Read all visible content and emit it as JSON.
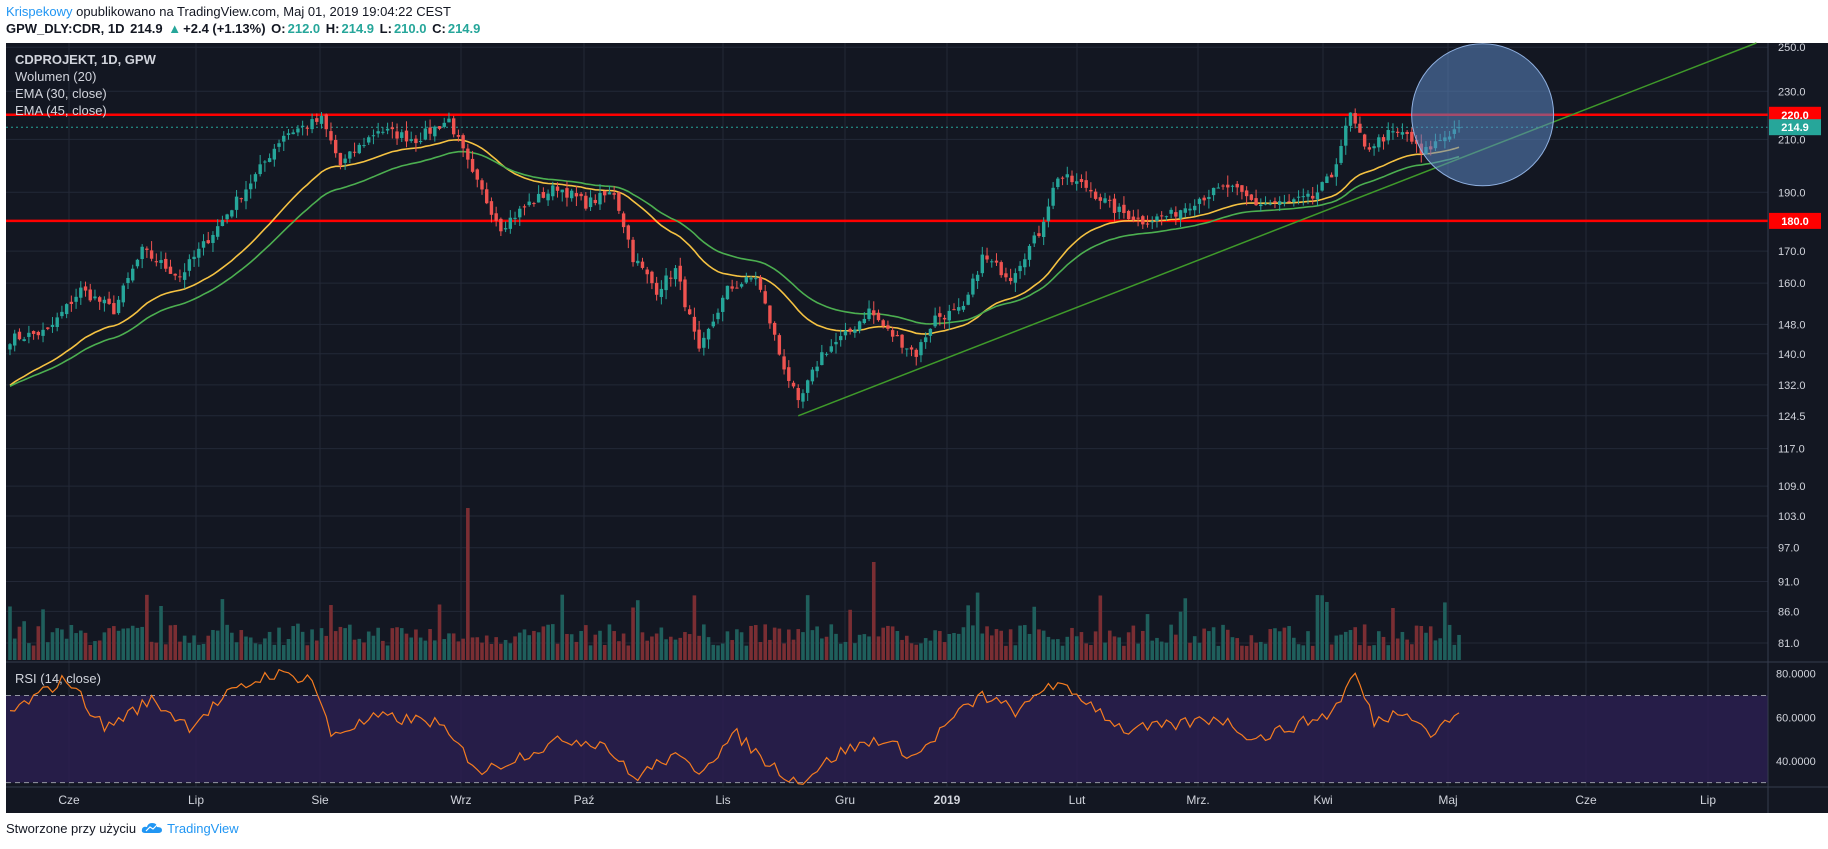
{
  "header": {
    "author": "Krispekowy",
    "published": "opublikowano na TradingView.com, Maj 01, 2019 19:04:22 CEST"
  },
  "quote": {
    "symbol": "GPW_DLY:CDR, 1D",
    "last": "214.9",
    "arrow": "▲",
    "change": "+2.4 (+1.13%)",
    "o_label": "O:",
    "o": "212.0",
    "h_label": "H:",
    "h": "214.9",
    "l_label": "L:",
    "l": "210.0",
    "c_label": "C:",
    "c": "214.9"
  },
  "legend": {
    "title": "CDPROJEKT, 1D, GPW",
    "volume": "Wolumen (20)",
    "ema30": "EMA (30, close)",
    "ema45": "EMA (45, close)",
    "rsi": "RSI (14, close)"
  },
  "footer": {
    "created": "Stworzone przy użyciu",
    "brand": "TradingView"
  },
  "colors": {
    "background": "#131722",
    "up": "#26a69a",
    "down": "#ef5350",
    "volume_up": "#1f5f5c",
    "volume_down": "#7a2e33",
    "ema30": "#f5c242",
    "ema45": "#4caf50",
    "hline": "#ff0000",
    "trend": "#3f9a2a",
    "rsi": "#f57c20",
    "rsi_band": "#2a1f4f",
    "circle_fill": "#5b86c2",
    "circle_stroke": "#8fb0e0"
  },
  "chart_data": {
    "type": "candlestick",
    "scale": "log",
    "ylim": [
      78,
      252
    ],
    "price_ticks": [
      "250.0",
      "230.0",
      "210.0",
      "190.0",
      "170.0",
      "160.0",
      "148.0",
      "140.0",
      "132.0",
      "124.5",
      "117.0",
      "109.0",
      "103.0",
      "97.0",
      "91.0",
      "86.0",
      "81.0"
    ],
    "price_tick_values": [
      250,
      230,
      210,
      190,
      170,
      160,
      148,
      140,
      132,
      124.5,
      117,
      109,
      103,
      97,
      91,
      86,
      81
    ],
    "x_ticks": [
      "Cze",
      "Lip",
      "Sie",
      "Wrz",
      "Paź",
      "Lis",
      "Gru",
      "2019",
      "Lut",
      "Mrz.",
      "Kwi",
      "Maj",
      "Cze",
      "Lip"
    ],
    "horizontal_levels": [
      {
        "label": "220.0",
        "value": 220
      },
      {
        "label": "180.0",
        "value": 180
      }
    ],
    "last_price": {
      "label": "214.9",
      "value": 214.9
    },
    "trendline": [
      {
        "bar": 167,
        "price": 124.5
      },
      {
        "bar": 370,
        "price": 252
      }
    ],
    "circle": {
      "center_bar": 312,
      "center_price": 220,
      "note": "highlight near 220 resistance"
    },
    "key_prices": [
      {
        "bar": 0,
        "price": 144
      },
      {
        "bar": 8,
        "price": 146
      },
      {
        "bar": 15,
        "price": 158
      },
      {
        "bar": 22,
        "price": 152
      },
      {
        "bar": 28,
        "price": 170
      },
      {
        "bar": 36,
        "price": 162
      },
      {
        "bar": 44,
        "price": 178
      },
      {
        "bar": 52,
        "price": 196
      },
      {
        "bar": 58,
        "price": 212
      },
      {
        "bar": 66,
        "price": 218
      },
      {
        "bar": 70,
        "price": 200
      },
      {
        "bar": 78,
        "price": 214
      },
      {
        "bar": 86,
        "price": 210
      },
      {
        "bar": 93,
        "price": 218
      },
      {
        "bar": 98,
        "price": 196
      },
      {
        "bar": 104,
        "price": 178
      },
      {
        "bar": 110,
        "price": 186
      },
      {
        "bar": 116,
        "price": 192
      },
      {
        "bar": 122,
        "price": 186
      },
      {
        "bar": 128,
        "price": 190
      },
      {
        "bar": 132,
        "price": 168
      },
      {
        "bar": 137,
        "price": 158
      },
      {
        "bar": 141,
        "price": 164
      },
      {
        "bar": 146,
        "price": 140
      },
      {
        "bar": 152,
        "price": 158
      },
      {
        "bar": 158,
        "price": 162
      },
      {
        "bar": 163,
        "price": 140
      },
      {
        "bar": 167,
        "price": 127
      },
      {
        "bar": 172,
        "price": 140
      },
      {
        "bar": 178,
        "price": 146
      },
      {
        "bar": 182,
        "price": 152
      },
      {
        "bar": 186,
        "price": 146
      },
      {
        "bar": 192,
        "price": 140
      },
      {
        "bar": 196,
        "price": 150
      },
      {
        "bar": 202,
        "price": 152
      },
      {
        "bar": 206,
        "price": 168
      },
      {
        "bar": 212,
        "price": 162
      },
      {
        "bar": 218,
        "price": 176
      },
      {
        "bar": 222,
        "price": 196
      },
      {
        "bar": 228,
        "price": 192
      },
      {
        "bar": 234,
        "price": 184
      },
      {
        "bar": 240,
        "price": 180
      },
      {
        "bar": 246,
        "price": 182
      },
      {
        "bar": 252,
        "price": 188
      },
      {
        "bar": 258,
        "price": 192
      },
      {
        "bar": 264,
        "price": 186
      },
      {
        "bar": 270,
        "price": 186
      },
      {
        "bar": 276,
        "price": 188
      },
      {
        "bar": 280,
        "price": 196
      },
      {
        "bar": 284,
        "price": 220
      },
      {
        "bar": 287,
        "price": 206
      },
      {
        "bar": 292,
        "price": 212
      },
      {
        "bar": 296,
        "price": 212
      },
      {
        "bar": 299,
        "price": 204
      },
      {
        "bar": 303,
        "price": 210
      },
      {
        "bar": 307,
        "price": 214.9
      }
    ],
    "rsi": {
      "ticks": [
        "80.0000",
        "60.0000",
        "40.0000"
      ],
      "tick_values": [
        80,
        60,
        40
      ],
      "ylim": [
        28,
        84
      ],
      "overbought": 70,
      "oversold": 30,
      "key_points": [
        {
          "bar": 0,
          "value": 62
        },
        {
          "bar": 12,
          "value": 78
        },
        {
          "bar": 20,
          "value": 55
        },
        {
          "bar": 30,
          "value": 68
        },
        {
          "bar": 38,
          "value": 56
        },
        {
          "bar": 46,
          "value": 70
        },
        {
          "bar": 55,
          "value": 80
        },
        {
          "bar": 64,
          "value": 78
        },
        {
          "bar": 68,
          "value": 52
        },
        {
          "bar": 78,
          "value": 60
        },
        {
          "bar": 90,
          "value": 58
        },
        {
          "bar": 100,
          "value": 35
        },
        {
          "bar": 110,
          "value": 44
        },
        {
          "bar": 118,
          "value": 50
        },
        {
          "bar": 126,
          "value": 48
        },
        {
          "bar": 132,
          "value": 32
        },
        {
          "bar": 140,
          "value": 42
        },
        {
          "bar": 146,
          "value": 36
        },
        {
          "bar": 154,
          "value": 52
        },
        {
          "bar": 160,
          "value": 40
        },
        {
          "bar": 167,
          "value": 30
        },
        {
          "bar": 176,
          "value": 44
        },
        {
          "bar": 184,
          "value": 50
        },
        {
          "bar": 192,
          "value": 42
        },
        {
          "bar": 200,
          "value": 60
        },
        {
          "bar": 206,
          "value": 70
        },
        {
          "bar": 214,
          "value": 62
        },
        {
          "bar": 220,
          "value": 76
        },
        {
          "bar": 228,
          "value": 68
        },
        {
          "bar": 236,
          "value": 54
        },
        {
          "bar": 246,
          "value": 56
        },
        {
          "bar": 256,
          "value": 60
        },
        {
          "bar": 264,
          "value": 50
        },
        {
          "bar": 272,
          "value": 56
        },
        {
          "bar": 280,
          "value": 62
        },
        {
          "bar": 285,
          "value": 80
        },
        {
          "bar": 289,
          "value": 58
        },
        {
          "bar": 296,
          "value": 64
        },
        {
          "bar": 301,
          "value": 52
        },
        {
          "bar": 307,
          "value": 62
        }
      ]
    }
  }
}
